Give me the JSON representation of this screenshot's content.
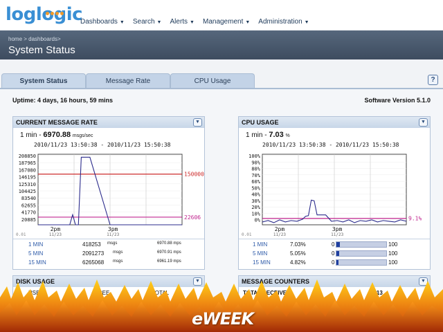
{
  "app": {
    "logo_text": "loglogic",
    "nav": [
      {
        "label": "Dashboards"
      },
      {
        "label": "Search"
      },
      {
        "label": "Alerts"
      },
      {
        "label": "Management"
      },
      {
        "label": "Administration"
      }
    ]
  },
  "header": {
    "breadcrumb": "home >  dashboards>",
    "title": "System Status"
  },
  "tabs": [
    {
      "label": "System Status",
      "active": true
    },
    {
      "label": "Message Rate",
      "active": false
    },
    {
      "label": "CPU Usage",
      "active": false
    }
  ],
  "help_label": "?",
  "status": {
    "uptime": "Uptime: 4 days, 16 hours, 59 mins",
    "version": "Software Version 5.1.0"
  },
  "message_rate": {
    "title": "CURRENT MESSAGE RATE",
    "summary_prefix": "1 min - ",
    "summary_value": "6970.88",
    "summary_unit": "msgs/sec",
    "range": "2010/11/23 13:50:38 - 2010/11/23 15:50:38",
    "rows": [
      {
        "period": "1 MIN",
        "count": "418253",
        "unit": "msgs",
        "rate": "6970.88 mps"
      },
      {
        "period": "5 MIN",
        "count": "2091273",
        "unit": "msgs",
        "rate": "6970.91 mps"
      },
      {
        "period": "15 MIN",
        "count": "6265068",
        "unit": "msgs",
        "rate": "6961.19 mps"
      }
    ]
  },
  "cpu_usage": {
    "title": "CPU USAGE",
    "summary_prefix": "1 min - ",
    "summary_value": "7.03",
    "summary_unit": "%",
    "range": "2010/11/23 13:50:38 - 2010/11/23 15:50:38",
    "rows": [
      {
        "period": "1 MIN",
        "value": "7.03%",
        "min": "0",
        "max": "100",
        "fill": 0.0703
      },
      {
        "period": "5 MIN",
        "value": "5.05%",
        "min": "0",
        "max": "100",
        "fill": 0.0505
      },
      {
        "period": "15 MIN",
        "value": "4.82%",
        "min": "0",
        "max": "100",
        "fill": 0.0482
      }
    ]
  },
  "disk_usage": {
    "title": "DISK USAGE",
    "columns": [
      "USED",
      "FREE",
      "TOTAL"
    ]
  },
  "message_counters": {
    "title": "MESSAGE COUNTERS",
    "first_row": "TOTAL RECEIVED",
    "first_value": "2913"
  },
  "overlay_logo": "eWEEK",
  "chart_data": [
    {
      "type": "line",
      "title": "",
      "ylim": [
        0,
        208850
      ],
      "yticks": [
        "208850",
        "187965",
        "167080",
        "146195",
        "125310",
        "104425",
        "83540",
        "62655",
        "41770",
        "20885"
      ],
      "xticks": [
        {
          "label": "2pm",
          "sub": "11/23"
        },
        {
          "label": "3pm",
          "sub": "11/23"
        }
      ],
      "y_zero_label": "0.01",
      "thresholds": [
        {
          "value": 150000,
          "label": "150000",
          "color": "#cc2a2a"
        },
        {
          "value": 22606,
          "label": "22606",
          "color": "#c0268f"
        }
      ],
      "x": [
        0,
        5,
        8,
        10,
        11,
        12,
        14,
        15,
        16,
        17,
        18,
        20,
        22,
        24,
        26,
        28,
        30,
        33,
        36,
        50,
        60,
        70,
        80,
        90,
        100
      ],
      "series": [
        {
          "values": [
            0,
            0,
            0,
            0,
            0,
            0,
            0,
            0,
            0,
            0,
            0,
            0,
            0,
            30000,
            0,
            0,
            200000,
            200000,
            200000,
            0,
            0,
            0,
            0,
            0,
            0
          ]
        }
      ],
      "series_color": "#2b2b8c"
    },
    {
      "type": "line",
      "title": "",
      "ylim": [
        0,
        100
      ],
      "yticks": [
        "100%",
        "90%",
        "80%",
        "70%",
        "60%",
        "50%",
        "40%",
        "30%",
        "20%",
        "10%",
        "0%"
      ],
      "xticks": [
        {
          "label": "2pm",
          "sub": "11/23"
        },
        {
          "label": "3pm",
          "sub": "11/23"
        }
      ],
      "y_zero_label": "0.01",
      "thresholds": [
        {
          "value": 9.1,
          "label": "9.1%",
          "color": "#c0268f"
        }
      ],
      "x": [
        0,
        4,
        8,
        12,
        16,
        20,
        24,
        28,
        30,
        32,
        34,
        36,
        38,
        40,
        42,
        44,
        48,
        52,
        56,
        60,
        64,
        68,
        72,
        76,
        80,
        84,
        88,
        92,
        96,
        100
      ],
      "series": [
        {
          "values": [
            4,
            6,
            3,
            7,
            4,
            6,
            5,
            8,
            12,
            13,
            35,
            34,
            14,
            14,
            14,
            14,
            5,
            6,
            4,
            7,
            3,
            6,
            5,
            7,
            4,
            6,
            5,
            4,
            7,
            5
          ]
        }
      ],
      "series_color": "#2b2b8c"
    }
  ]
}
